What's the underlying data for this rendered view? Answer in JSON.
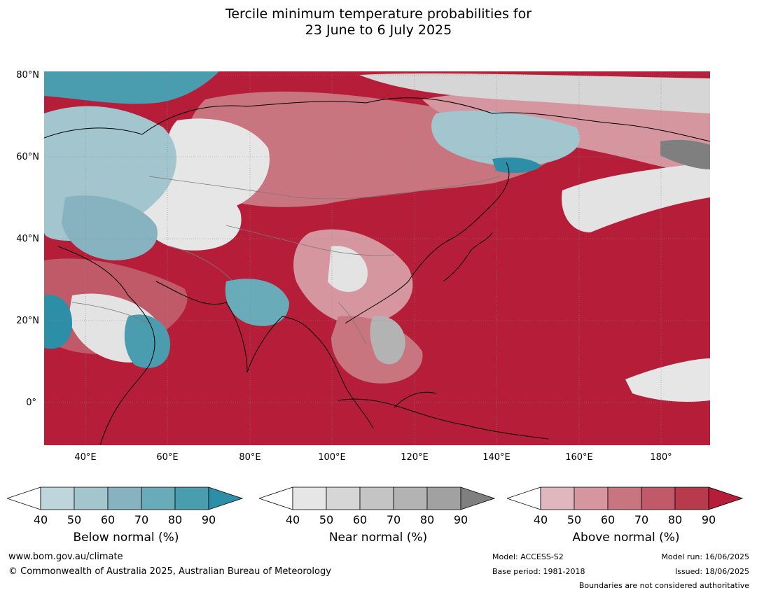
{
  "title": {
    "line1": "Tercile minimum temperature probabilities for",
    "line2": "23 June to 6 July 2025"
  },
  "map": {
    "lat_labels": [
      "80°N",
      "60°N",
      "40°N",
      "20°N",
      "0°"
    ],
    "lon_labels": [
      "40°E",
      "60°E",
      "80°E",
      "100°E",
      "120°E",
      "140°E",
      "160°E",
      "180°"
    ],
    "colors": {
      "above_base": "#b51d38",
      "below_base": "#2c8fa7",
      "near_light": "#e3e3e3"
    }
  },
  "legends": [
    {
      "title": "Below normal (%)",
      "ticks": [
        "40",
        "50",
        "60",
        "70",
        "80",
        "90"
      ],
      "colors": [
        "#bfd5dc",
        "#a3c6ce",
        "#86b3bf",
        "#6aabb9",
        "#4a9dae",
        "#2c8fa7"
      ]
    },
    {
      "title": "Near normal (%)",
      "ticks": [
        "40",
        "50",
        "60",
        "70",
        "80",
        "90"
      ],
      "colors": [
        "#e6e6e6",
        "#d6d6d6",
        "#c4c4c4",
        "#b3b3b3",
        "#a1a1a1",
        "#7f7f7f"
      ]
    },
    {
      "title": "Above normal (%)",
      "ticks": [
        "40",
        "50",
        "60",
        "70",
        "80",
        "90"
      ],
      "colors": [
        "#e0b7be",
        "#d5969f",
        "#c9757f",
        "#c15a68",
        "#b83a4d",
        "#b51d38"
      ]
    }
  ],
  "footer": {
    "website": "www.bom.gov.au/climate",
    "copyright": "© Commonwealth of Australia 2025, Australian Bureau of Meteorology",
    "model": "Model: ACCESS-S2",
    "base_period": "Base period: 1981-2018",
    "model_run": "Model run: 16/06/2025",
    "issued": "Issued: 18/06/2025",
    "disclaimer": "Boundaries are not considered authoritative"
  }
}
